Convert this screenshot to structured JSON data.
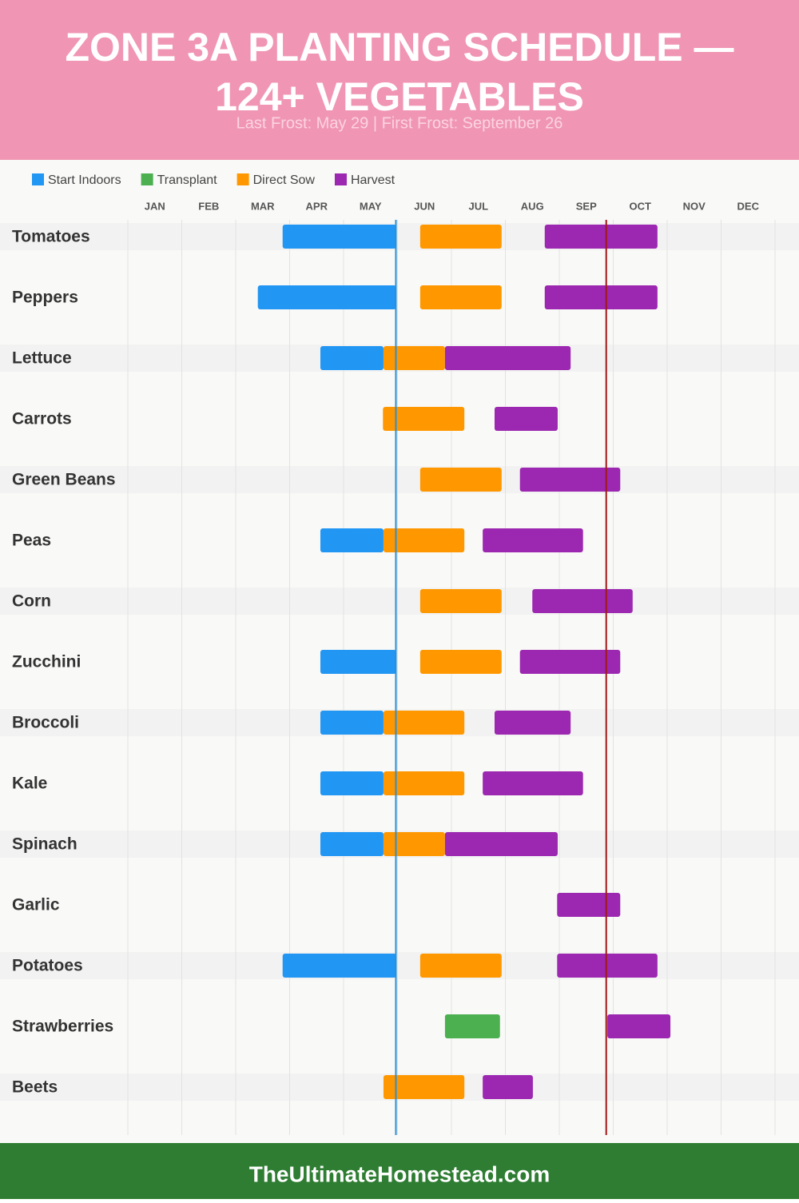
{
  "chart_data": {
    "type": "gantt",
    "title": [
      "ZONE 3A PLANTING SCHEDULE —",
      "124+ VEGETABLES"
    ],
    "subtitle": "Last Frost: May 29 | First Frost: September 26",
    "footer": "TheUltimateHomestead.com",
    "categories": [
      "Tomatoes",
      "Peppers",
      "Lettuce",
      "Carrots",
      "Green Beans",
      "Peas",
      "Corn",
      "Zucchini",
      "Broccoli",
      "Kale",
      "Spinach",
      "Garlic",
      "Potatoes",
      "Strawberries",
      "Beets"
    ],
    "xlim": [
      0,
      12
    ],
    "xticks": [
      {
        "value": 0,
        "label": "JAN"
      },
      {
        "value": 1,
        "label": "FEB"
      },
      {
        "value": 2,
        "label": "MAR"
      },
      {
        "value": 3,
        "label": "APR"
      },
      {
        "value": 4,
        "label": "MAY"
      },
      {
        "value": 5,
        "label": "JUN"
      },
      {
        "value": 6,
        "label": "JUL"
      },
      {
        "value": 7,
        "label": "AUG"
      },
      {
        "value": 8,
        "label": "SEP"
      },
      {
        "value": 9,
        "label": "OCT"
      },
      {
        "value": 10,
        "label": "NOV"
      },
      {
        "value": 11,
        "label": "DEC"
      }
    ],
    "grid": true,
    "markers": [
      {
        "value": 4.97,
        "color": "#2a8fd6"
      },
      {
        "value": 8.87,
        "color": "#a01818"
      }
    ],
    "series": [
      {
        "name": "Start Indoors",
        "color": "#2196f3",
        "values": [
          [
            2.87,
            4.98
          ],
          [
            2.41,
            4.98
          ],
          [
            3.57,
            4.74
          ],
          null,
          null,
          [
            3.57,
            4.74
          ],
          null,
          [
            3.57,
            4.98
          ],
          [
            3.57,
            4.74
          ],
          [
            3.57,
            4.74
          ],
          [
            3.57,
            4.74
          ],
          null,
          [
            2.87,
            4.98
          ],
          null,
          null
        ]
      },
      {
        "name": "Transplant",
        "color": "#4caf50",
        "values": [
          null,
          null,
          null,
          null,
          null,
          null,
          null,
          null,
          null,
          null,
          null,
          null,
          null,
          [
            5.88,
            6.9
          ],
          null
        ]
      },
      {
        "name": "Direct Sow",
        "color": "#ff9800",
        "values": [
          [
            5.42,
            6.93
          ],
          [
            5.42,
            6.93
          ],
          [
            4.74,
            5.88
          ],
          [
            4.73,
            6.24
          ],
          [
            5.42,
            6.93
          ],
          [
            4.74,
            6.24
          ],
          [
            5.42,
            6.93
          ],
          [
            5.42,
            6.93
          ],
          [
            4.74,
            6.24
          ],
          [
            4.74,
            6.24
          ],
          [
            4.74,
            5.88
          ],
          null,
          [
            5.42,
            6.93
          ],
          null,
          [
            4.74,
            6.24
          ]
        ]
      },
      {
        "name": "Harvest",
        "color": "#9c27b0",
        "values": [
          [
            7.73,
            9.82
          ],
          [
            7.73,
            9.82
          ],
          [
            5.88,
            8.21
          ],
          [
            6.8,
            7.97
          ],
          [
            7.27,
            9.13
          ],
          [
            6.58,
            8.44
          ],
          [
            7.5,
            9.36
          ],
          [
            7.27,
            9.13
          ],
          [
            6.8,
            8.21
          ],
          [
            6.58,
            8.44
          ],
          [
            5.88,
            7.97
          ],
          [
            7.96,
            9.13
          ],
          [
            7.96,
            9.82
          ],
          [
            8.89,
            10.06
          ],
          [
            6.58,
            7.51
          ]
        ]
      }
    ]
  }
}
